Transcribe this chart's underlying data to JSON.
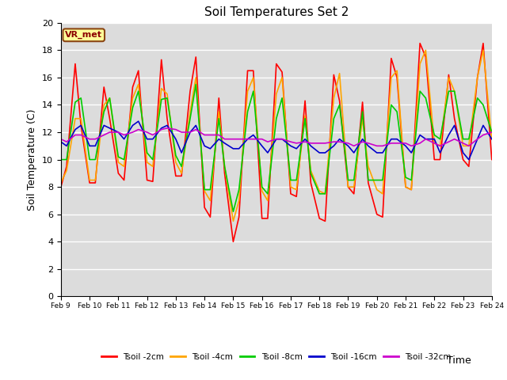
{
  "title": "Soil Temperatures Set 2",
  "xlabel": "Time",
  "ylabel": "Soil Temperature (C)",
  "ylim": [
    0,
    20
  ],
  "yticks": [
    0,
    2,
    4,
    6,
    8,
    10,
    12,
    14,
    16,
    18,
    20
  ],
  "xtick_labels": [
    "Feb 9",
    "Feb 10",
    "Feb 11",
    "Feb 12",
    "Feb 13",
    "Feb 14",
    "Feb 15",
    "Feb 16",
    "Feb 17",
    "Feb 18",
    "Feb 19",
    "Feb 20",
    "Feb 21",
    "Feb 22",
    "Feb 23",
    "Feb 24"
  ],
  "annotation_text": "VR_met",
  "annotation_color": "#8B0000",
  "annotation_bg": "#FFFF99",
  "annotation_border": "#8B4513",
  "background_color": "#DCDCDC",
  "lines": {
    "Tsoil -2cm": {
      "color": "#FF0000",
      "lw": 1.2
    },
    "Tsoil -4cm": {
      "color": "#FFA500",
      "lw": 1.2
    },
    "Tsoil -8cm": {
      "color": "#00CC00",
      "lw": 1.2
    },
    "Tsoil -16cm": {
      "color": "#0000CC",
      "lw": 1.2
    },
    "Tsoil -32cm": {
      "color": "#CC00CC",
      "lw": 1.2
    }
  },
  "x_2cm": [
    0,
    0.2,
    0.5,
    0.7,
    1.0,
    1.2,
    1.5,
    1.7,
    2.0,
    2.2,
    2.5,
    2.7,
    3.0,
    3.2,
    3.5,
    3.7,
    4.0,
    4.2,
    4.5,
    4.7,
    5.0,
    5.2,
    5.5,
    5.7,
    6.0,
    6.2,
    6.5,
    6.7,
    7.0,
    7.2,
    7.5,
    7.7,
    8.0,
    8.2,
    8.5,
    8.7,
    9.0,
    9.2,
    9.5,
    9.7,
    10.0,
    10.2,
    10.5,
    10.7,
    11.0,
    11.2,
    11.5,
    11.7,
    12.0,
    12.2,
    12.5,
    12.7,
    13.0,
    13.2,
    13.5,
    13.7,
    14.0,
    14.2,
    14.5,
    14.7,
    15.0
  ],
  "y_2cm": [
    8.0,
    9.5,
    17.0,
    12.5,
    8.3,
    8.3,
    15.3,
    13.0,
    9.0,
    8.5,
    15.3,
    16.5,
    8.5,
    8.4,
    17.3,
    13.0,
    8.8,
    8.8,
    15.0,
    17.5,
    6.5,
    5.8,
    14.5,
    9.0,
    4.0,
    5.8,
    16.5,
    16.5,
    5.7,
    5.7,
    17.0,
    16.4,
    7.5,
    7.3,
    14.3,
    8.3,
    5.7,
    5.5,
    16.2,
    14.3,
    8.0,
    7.5,
    14.2,
    8.3,
    6.0,
    5.8,
    17.4,
    16.0,
    8.0,
    7.8,
    18.5,
    17.5,
    10.0,
    10.0,
    16.2,
    13.0,
    10.0,
    9.5,
    16.0,
    18.5,
    10.0
  ],
  "y_4cm": [
    8.3,
    9.2,
    13.0,
    13.0,
    8.5,
    8.5,
    14.0,
    14.5,
    9.8,
    9.5,
    14.5,
    15.5,
    9.8,
    9.5,
    15.2,
    14.8,
    9.8,
    9.0,
    13.5,
    16.0,
    7.7,
    7.0,
    13.5,
    9.5,
    5.5,
    7.0,
    15.0,
    16.0,
    7.7,
    7.0,
    14.8,
    16.0,
    8.0,
    7.8,
    13.2,
    9.2,
    7.7,
    7.5,
    14.5,
    16.3,
    8.0,
    8.0,
    13.0,
    9.5,
    7.8,
    7.5,
    16.0,
    16.5,
    8.0,
    7.8,
    17.0,
    18.0,
    11.2,
    11.0,
    16.0,
    15.0,
    11.0,
    11.0,
    16.0,
    18.0,
    11.5
  ],
  "y_8cm": [
    10.0,
    10.0,
    14.2,
    14.5,
    10.0,
    10.0,
    13.5,
    14.5,
    10.2,
    10.0,
    13.8,
    15.0,
    10.5,
    10.0,
    14.4,
    14.5,
    10.3,
    9.5,
    13.0,
    15.5,
    7.8,
    7.8,
    13.0,
    9.5,
    6.2,
    7.8,
    13.5,
    15.0,
    8.0,
    7.5,
    13.0,
    14.5,
    8.5,
    8.5,
    13.0,
    9.0,
    7.5,
    7.5,
    13.0,
    14.0,
    8.5,
    8.5,
    13.5,
    8.5,
    8.5,
    8.5,
    14.0,
    13.5,
    8.7,
    8.5,
    15.0,
    14.5,
    11.8,
    11.5,
    15.0,
    15.0,
    11.5,
    11.5,
    14.5,
    14.0,
    12.0
  ],
  "y_16cm": [
    11.3,
    11.0,
    12.2,
    12.5,
    11.0,
    11.0,
    12.5,
    12.3,
    12.0,
    11.5,
    12.5,
    12.8,
    11.5,
    11.5,
    12.3,
    12.5,
    11.5,
    10.5,
    12.0,
    12.5,
    11.0,
    10.8,
    11.5,
    11.2,
    10.8,
    10.8,
    11.5,
    11.8,
    11.0,
    10.5,
    11.5,
    11.5,
    11.0,
    10.8,
    11.5,
    11.0,
    10.5,
    10.5,
    11.0,
    11.5,
    11.0,
    10.5,
    11.5,
    11.0,
    10.5,
    10.5,
    11.5,
    11.5,
    11.0,
    10.5,
    11.8,
    11.5,
    11.5,
    10.5,
    11.8,
    12.5,
    10.5,
    10.0,
    11.5,
    12.5,
    11.5
  ],
  "y_32cm": [
    11.5,
    11.3,
    11.8,
    11.8,
    11.5,
    11.5,
    11.8,
    12.0,
    12.0,
    11.8,
    12.0,
    12.2,
    12.0,
    11.8,
    12.2,
    12.3,
    12.2,
    12.0,
    12.0,
    12.2,
    11.8,
    11.8,
    11.8,
    11.5,
    11.5,
    11.5,
    11.5,
    11.5,
    11.5,
    11.3,
    11.5,
    11.5,
    11.3,
    11.2,
    11.3,
    11.2,
    11.2,
    11.2,
    11.3,
    11.3,
    11.2,
    11.0,
    11.3,
    11.2,
    11.0,
    11.0,
    11.2,
    11.2,
    11.2,
    11.0,
    11.2,
    11.5,
    11.2,
    11.0,
    11.3,
    11.5,
    11.2,
    11.0,
    11.5,
    11.8,
    12.0
  ]
}
